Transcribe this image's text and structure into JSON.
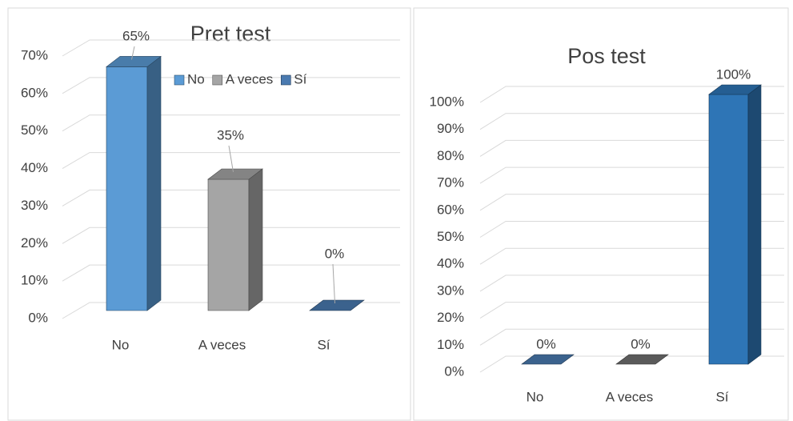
{
  "chart_data": [
    {
      "type": "bar3d",
      "title": "Pret test",
      "categories": [
        "No",
        "A veces",
        "Sí"
      ],
      "values": [
        65,
        35,
        0
      ],
      "value_labels": [
        "65%",
        "35%",
        "0%"
      ],
      "colors": [
        "#5b9bd5",
        "#a5a5a5",
        "#4a7ab0"
      ],
      "ylim": [
        0,
        70
      ],
      "yticks": [
        {
          "value": 0,
          "label": "0%"
        },
        {
          "value": 10,
          "label": "10%"
        },
        {
          "value": 20,
          "label": "20%"
        },
        {
          "value": 30,
          "label": "30%"
        },
        {
          "value": 40,
          "label": "40%"
        },
        {
          "value": 50,
          "label": "50%"
        },
        {
          "value": 60,
          "label": "60%"
        },
        {
          "value": 70,
          "label": "70%"
        }
      ],
      "grid": true,
      "legend": true
    },
    {
      "type": "bar3d",
      "title": "Pos test",
      "categories": [
        "No",
        "A veces",
        "Sí"
      ],
      "values": [
        0,
        0,
        100
      ],
      "value_labels": [
        "0%",
        "0%",
        "100%"
      ],
      "colors": [
        "#4a7ab0",
        "#707070",
        "#2e75b6"
      ],
      "ylim": [
        0,
        100
      ],
      "yticks": [
        {
          "value": 0,
          "label": "0%"
        },
        {
          "value": 10,
          "label": "10%"
        },
        {
          "value": 20,
          "label": "20%"
        },
        {
          "value": 30,
          "label": "30%"
        },
        {
          "value": 40,
          "label": "40%"
        },
        {
          "value": 50,
          "label": "50%"
        },
        {
          "value": 60,
          "label": "60%"
        },
        {
          "value": 70,
          "label": "70%"
        },
        {
          "value": 80,
          "label": "80%"
        },
        {
          "value": 90,
          "label": "90%"
        },
        {
          "value": 100,
          "label": "100%"
        }
      ],
      "grid": true,
      "legend": false
    }
  ]
}
